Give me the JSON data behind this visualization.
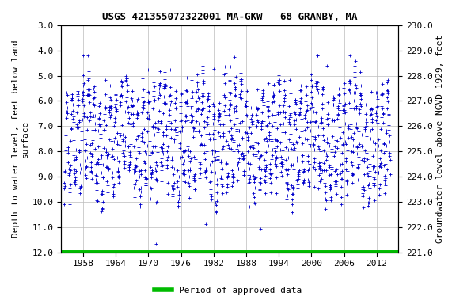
{
  "title": "USGS 421355072322001 MA-GKW   68 GRANBY, MA",
  "ylabel_left": "Depth to water level, feet below land\nsurface",
  "ylabel_right": "Groundwater level above NGVD 1929, feet",
  "ylim_left": [
    3.0,
    12.0
  ],
  "ylim_right_top": 230.0,
  "ylim_right_bottom": 221.0,
  "xlim": [
    1954,
    2016
  ],
  "xticks": [
    1958,
    1964,
    1970,
    1976,
    1982,
    1988,
    1994,
    2000,
    2006,
    2012
  ],
  "yticks_left": [
    3.0,
    4.0,
    5.0,
    6.0,
    7.0,
    8.0,
    9.0,
    10.0,
    11.0,
    12.0
  ],
  "yticks_right": [
    230.0,
    229.0,
    228.0,
    227.0,
    226.0,
    225.0,
    224.0,
    223.0,
    222.0,
    221.0
  ],
  "data_color": "#0000cc",
  "approved_color": "#00bb00",
  "approved_line_y": 12.0,
  "marker": "+",
  "background_color": "#ffffff",
  "grid_color": "#bbbbbb",
  "title_fontsize": 9,
  "axis_label_fontsize": 8,
  "tick_fontsize": 8,
  "legend_label": "Period of approved data",
  "legend_color": "#00bb00",
  "seed1": 42,
  "seed2": 123,
  "data_start": 1954.5,
  "data_end": 2014.5
}
